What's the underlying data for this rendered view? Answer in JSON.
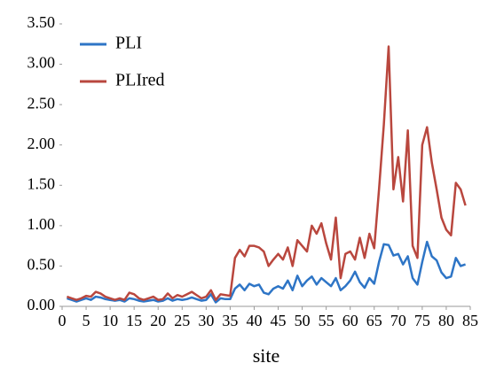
{
  "chart_data": {
    "type": "line",
    "x_label": "site",
    "x": [
      1,
      2,
      3,
      4,
      5,
      6,
      7,
      8,
      9,
      10,
      11,
      12,
      13,
      14,
      15,
      16,
      17,
      18,
      19,
      20,
      21,
      22,
      23,
      24,
      25,
      26,
      27,
      28,
      29,
      30,
      31,
      32,
      33,
      34,
      35,
      36,
      37,
      38,
      39,
      40,
      41,
      42,
      43,
      44,
      45,
      46,
      47,
      48,
      49,
      50,
      51,
      52,
      53,
      54,
      55,
      56,
      57,
      58,
      59,
      60,
      61,
      62,
      63,
      64,
      65,
      66,
      67,
      68,
      69,
      70,
      71,
      72,
      73,
      74,
      75,
      76,
      77,
      78,
      79,
      80,
      81,
      82,
      83,
      84
    ],
    "series": [
      {
        "name": "PLI",
        "color": "#2e75c6",
        "values": [
          0.1,
          0.08,
          0.06,
          0.08,
          0.1,
          0.08,
          0.12,
          0.11,
          0.09,
          0.08,
          0.07,
          0.08,
          0.06,
          0.1,
          0.09,
          0.07,
          0.06,
          0.07,
          0.08,
          0.06,
          0.07,
          0.1,
          0.07,
          0.09,
          0.08,
          0.09,
          0.11,
          0.09,
          0.07,
          0.08,
          0.15,
          0.05,
          0.1,
          0.09,
          0.09,
          0.22,
          0.27,
          0.2,
          0.28,
          0.25,
          0.27,
          0.17,
          0.15,
          0.22,
          0.25,
          0.22,
          0.32,
          0.2,
          0.38,
          0.25,
          0.32,
          0.37,
          0.27,
          0.35,
          0.3,
          0.25,
          0.35,
          0.2,
          0.25,
          0.32,
          0.43,
          0.3,
          0.23,
          0.35,
          0.28,
          0.55,
          0.77,
          0.76,
          0.63,
          0.65,
          0.52,
          0.62,
          0.35,
          0.27,
          0.55,
          0.8,
          0.62,
          0.57,
          0.42,
          0.35,
          0.37,
          0.6,
          0.5,
          0.52
        ]
      },
      {
        "name": "PLIred",
        "color": "#b9473e",
        "values": [
          0.12,
          0.1,
          0.08,
          0.1,
          0.13,
          0.12,
          0.18,
          0.16,
          0.12,
          0.1,
          0.08,
          0.1,
          0.08,
          0.17,
          0.15,
          0.1,
          0.08,
          0.1,
          0.12,
          0.08,
          0.09,
          0.16,
          0.1,
          0.14,
          0.12,
          0.15,
          0.18,
          0.14,
          0.1,
          0.12,
          0.2,
          0.08,
          0.15,
          0.14,
          0.13,
          0.6,
          0.7,
          0.62,
          0.75,
          0.75,
          0.73,
          0.68,
          0.5,
          0.58,
          0.65,
          0.58,
          0.73,
          0.5,
          0.82,
          0.75,
          0.68,
          1.0,
          0.9,
          1.03,
          0.78,
          0.58,
          1.1,
          0.35,
          0.65,
          0.68,
          0.58,
          0.85,
          0.6,
          0.9,
          0.72,
          1.45,
          2.25,
          3.22,
          1.45,
          1.85,
          1.3,
          2.18,
          0.75,
          0.6,
          2.0,
          2.22,
          1.78,
          1.45,
          1.1,
          0.95,
          0.88,
          1.53,
          1.45,
          1.25
        ]
      }
    ],
    "xlim": [
      0,
      85
    ],
    "xticks": [
      0,
      5,
      10,
      15,
      20,
      25,
      30,
      35,
      40,
      45,
      50,
      55,
      60,
      65,
      70,
      75,
      80,
      85
    ],
    "ylim": [
      0,
      3.5
    ],
    "yticks": [
      {
        "value": 0,
        "label": "0.00"
      },
      {
        "value": 0.5,
        "label": "0.50"
      },
      {
        "value": 1,
        "label": "1.00"
      },
      {
        "value": 1.5,
        "label": "1.50"
      },
      {
        "value": 2,
        "label": "2.00"
      },
      {
        "value": 2.5,
        "label": "2.50"
      },
      {
        "value": 3,
        "label": "3.00"
      },
      {
        "value": 3.5,
        "label": "3.50"
      }
    ],
    "grid": false,
    "legend": "upper left"
  }
}
